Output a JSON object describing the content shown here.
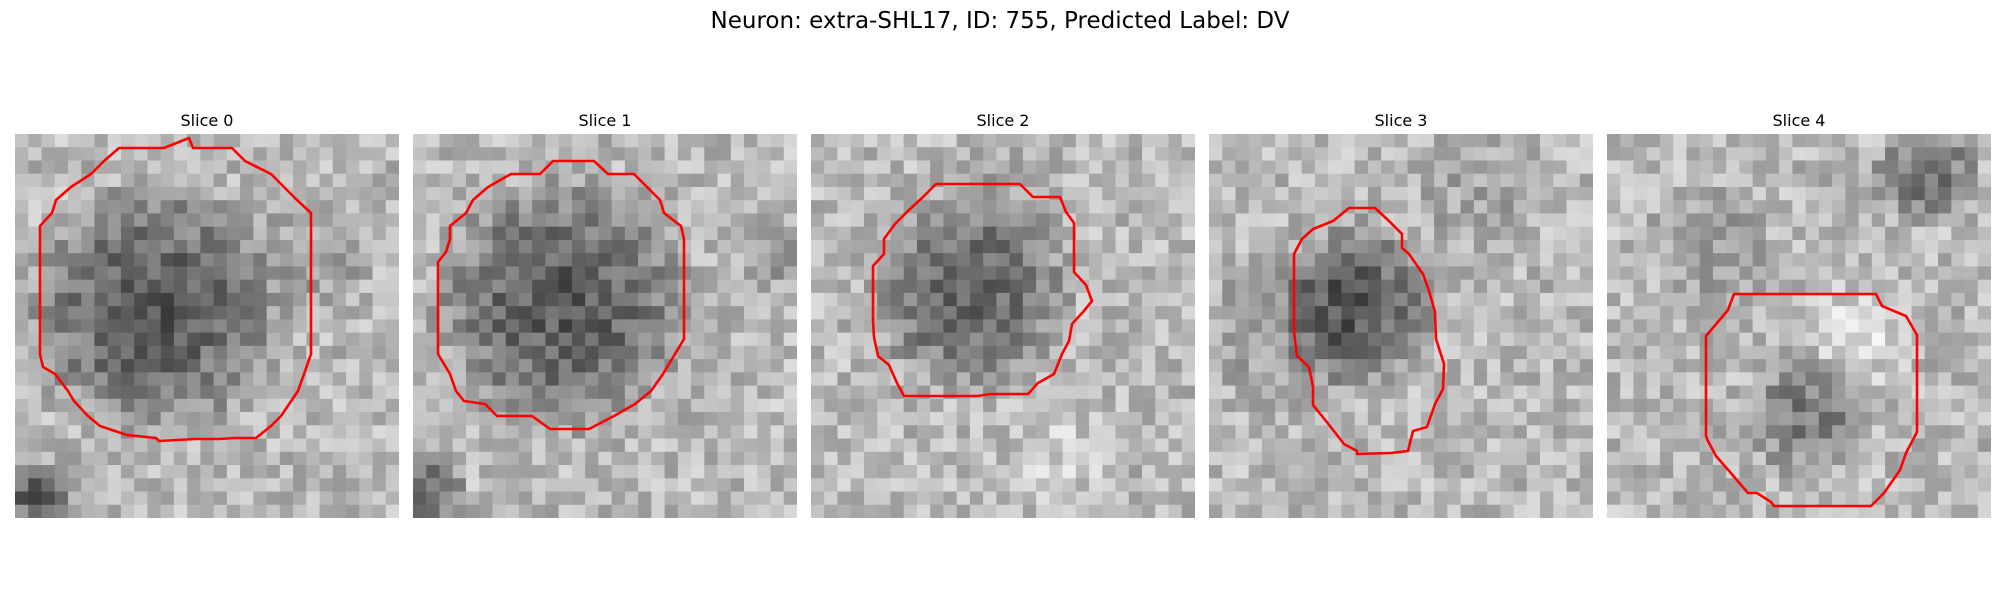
{
  "figure": {
    "title": "Neuron: extra-SHL17, ID: 755, Predicted Label: DV"
  },
  "panels": [
    {
      "title": "Slice 0"
    },
    {
      "title": "Slice 1"
    },
    {
      "title": "Slice 2"
    },
    {
      "title": "Slice 3"
    },
    {
      "title": "Slice 4"
    }
  ],
  "colors": {
    "contour": "#ff0000",
    "background": "#ffffff"
  }
}
